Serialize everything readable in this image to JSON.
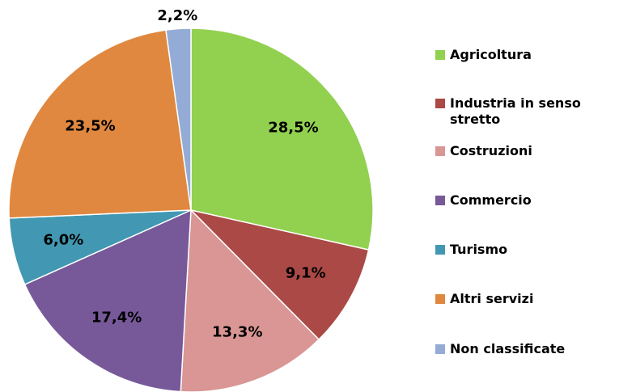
{
  "chart_data": {
    "type": "pie",
    "categories": [
      "Agricoltura",
      "Industria in senso stretto",
      "Costruzioni",
      "Commercio",
      "Turismo",
      "Altri servizi",
      "Non classificate"
    ],
    "values": [
      28.5,
      9.1,
      13.3,
      17.4,
      6.0,
      23.5,
      2.2
    ],
    "value_labels": [
      "28,5%",
      "9,1%",
      "13,3%",
      "17,4%",
      "6,0%",
      "23,5%",
      "2,2%"
    ],
    "colors": [
      "#92d050",
      "#ab4946",
      "#d99694",
      "#77599a",
      "#4298b2",
      "#e0883f",
      "#94abd6"
    ],
    "legend": "right"
  }
}
